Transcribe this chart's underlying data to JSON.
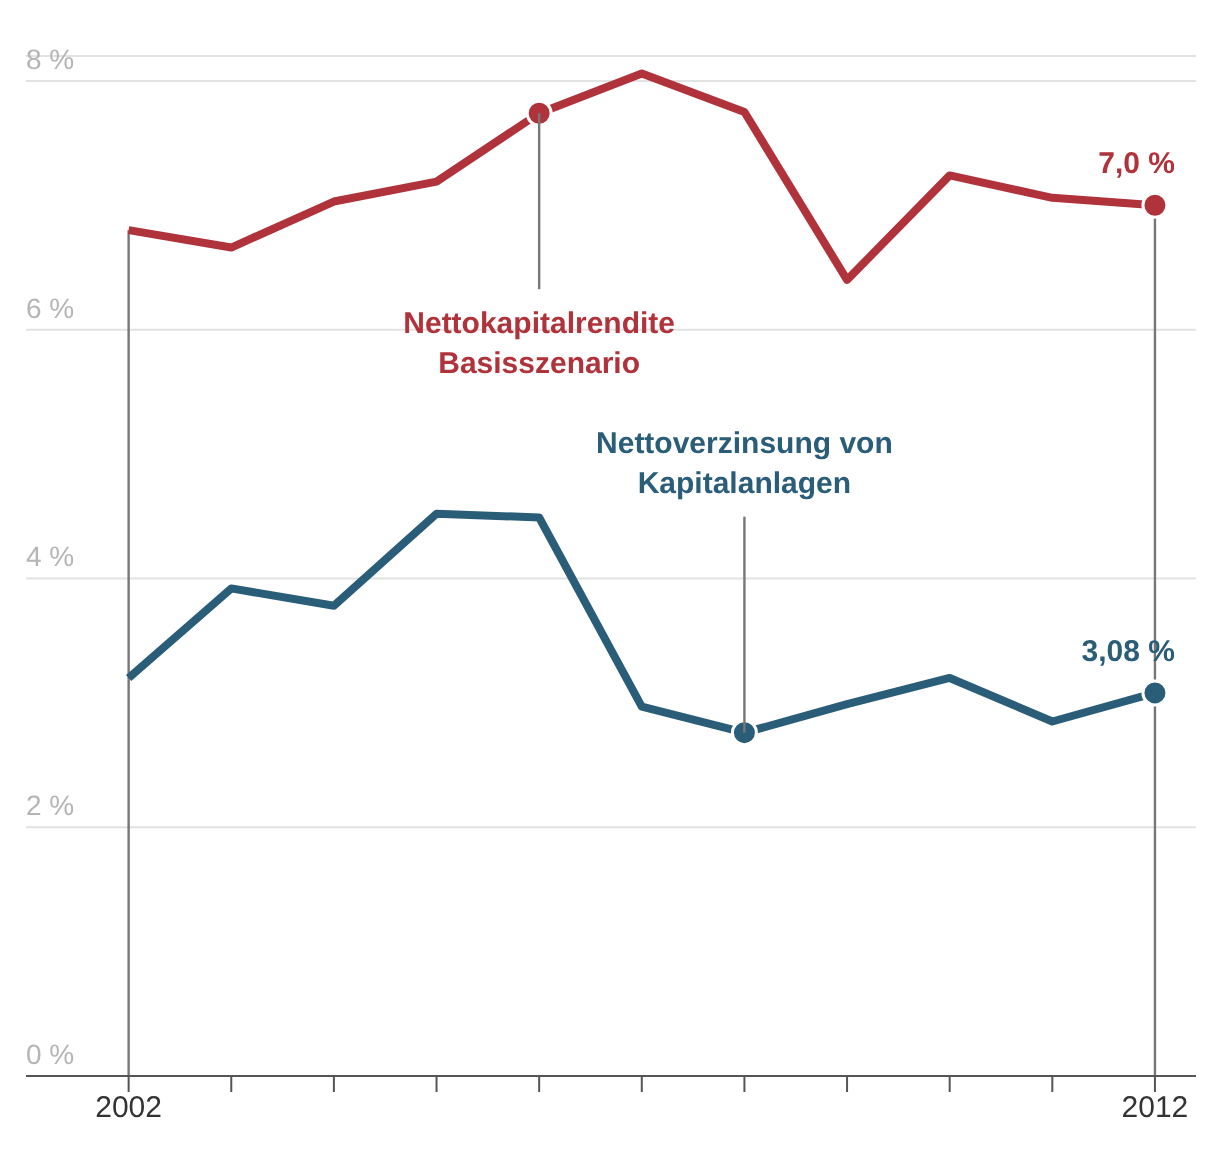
{
  "chart_data": {
    "type": "line",
    "x": [
      2002,
      2003,
      2004,
      2005,
      2006,
      2007,
      2008,
      2009,
      2010,
      2011,
      2012
    ],
    "series": [
      {
        "name": "Nettokapitalrendite Basisszenario",
        "color": "#b0323a",
        "values": [
          6.8,
          6.66,
          7.03,
          7.19,
          7.74,
          8.06,
          7.75,
          6.4,
          7.24,
          7.06,
          7.0
        ],
        "value_labels": [
          null,
          null,
          null,
          null,
          null,
          null,
          null,
          null,
          null,
          null,
          "7,0 %"
        ]
      },
      {
        "name": "Nettoverzinsung von Kapitalanlagen",
        "color": "#2a5d78",
        "values": [
          3.2,
          3.92,
          3.78,
          4.52,
          4.49,
          2.97,
          2.76,
          2.99,
          3.2,
          2.85,
          3.08
        ],
        "value_labels": [
          null,
          null,
          null,
          null,
          null,
          null,
          null,
          null,
          null,
          null,
          "3,08 %"
        ]
      }
    ],
    "xlim": [
      2001,
      2012.4
    ],
    "xticks": [
      {
        "value": 2002,
        "label": "2002"
      },
      {
        "value": 2003,
        "label": null
      },
      {
        "value": 2004,
        "label": null
      },
      {
        "value": 2005,
        "label": null
      },
      {
        "value": 2006,
        "label": null
      },
      {
        "value": 2007,
        "label": null
      },
      {
        "value": 2008,
        "label": null
      },
      {
        "value": 2009,
        "label": null
      },
      {
        "value": 2010,
        "label": null
      },
      {
        "value": 2011,
        "label": null
      },
      {
        "value": 2012,
        "label": "2012"
      }
    ],
    "ylim": [
      0,
      8.2
    ],
    "yticks": [
      {
        "value": 0,
        "label": "0 %"
      },
      {
        "value": 2,
        "label": "2 %"
      },
      {
        "value": 4,
        "label": "4 %"
      },
      {
        "value": 6,
        "label": "6 %"
      },
      {
        "value": 8,
        "label": "8 %"
      }
    ],
    "ref_lines": [
      {
        "axis": "x",
        "value": 2002,
        "color": "#777777"
      },
      {
        "axis": "x",
        "value": 2012,
        "color": "#777777"
      }
    ],
    "grid": "y",
    "legend": false,
    "marker": "none",
    "line_style": "solid"
  }
}
